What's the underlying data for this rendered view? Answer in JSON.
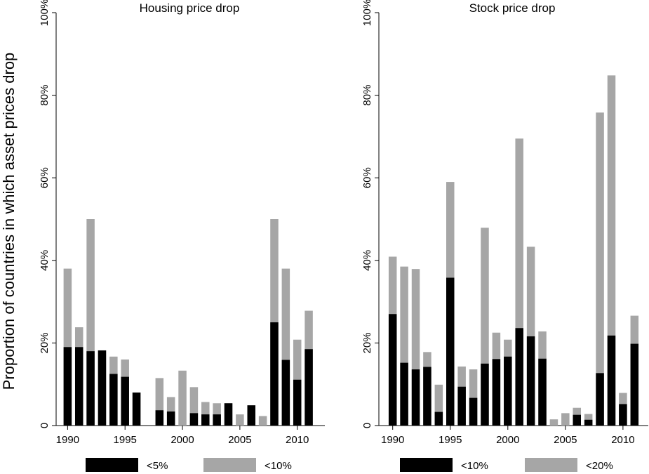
{
  "figure": {
    "ylabel": "Proportion of countries in which asset prices drop"
  },
  "colors": {
    "series1": "#000000",
    "series2": "#a6a6a6"
  },
  "chart_data": [
    {
      "type": "bar",
      "stacked": true,
      "title": "Housing price drop",
      "xlabel": "",
      "ylabel": "Proportion of countries in which asset prices drop",
      "x": [
        1990,
        1991,
        1992,
        1993,
        1994,
        1995,
        1996,
        1997,
        1998,
        1999,
        2000,
        2001,
        2002,
        2003,
        2004,
        2005,
        2006,
        2007,
        2008,
        2009,
        2010,
        2011
      ],
      "series": [
        {
          "name": "<5%",
          "color": "#000000",
          "values": [
            19.0,
            19.0,
            18.0,
            18.2,
            12.5,
            11.8,
            8.0,
            0,
            3.7,
            3.4,
            0,
            3.0,
            2.7,
            2.7,
            5.4,
            0,
            4.9,
            0,
            25.0,
            15.9,
            11.1,
            18.5
          ]
        },
        {
          "name": "<10%",
          "color": "#a6a6a6",
          "values": [
            38.0,
            23.8,
            50.0,
            18.2,
            16.7,
            16.0,
            8.0,
            0,
            11.5,
            6.9,
            13.3,
            9.3,
            5.7,
            5.4,
            5.4,
            2.7,
            4.9,
            2.3,
            50.0,
            38.0,
            20.8,
            27.8
          ]
        }
      ],
      "ylim": [
        0,
        100
      ],
      "yticks": [
        0,
        20,
        40,
        60,
        80,
        100
      ],
      "ytick_labels": [
        "0",
        "20%",
        "40%",
        "60%",
        "80%",
        "100%"
      ],
      "xticks": [
        1990,
        1995,
        2000,
        2005,
        2010
      ],
      "xtick_labels": [
        "1990",
        "1995",
        "2000",
        "2005",
        "2010"
      ],
      "legend": [
        "<5%",
        "<10%"
      ],
      "legend_position": "bottom"
    },
    {
      "type": "bar",
      "stacked": true,
      "title": "Stock price drop",
      "xlabel": "",
      "ylabel": "",
      "x": [
        1990,
        1991,
        1992,
        1993,
        1994,
        1995,
        1996,
        1997,
        1998,
        1999,
        2000,
        2001,
        2002,
        2003,
        2004,
        2005,
        2006,
        2007,
        2008,
        2009,
        2010,
        2011
      ],
      "series": [
        {
          "name": "<10%",
          "color": "#000000",
          "values": [
            27.0,
            15.2,
            13.6,
            14.2,
            3.3,
            35.8,
            9.4,
            6.7,
            15.0,
            16.1,
            16.7,
            23.6,
            21.6,
            16.2,
            0,
            0,
            2.6,
            1.4,
            12.7,
            21.8,
            5.2,
            19.8
          ]
        },
        {
          "name": "<20%",
          "color": "#a6a6a6",
          "values": [
            40.9,
            38.5,
            37.9,
            17.8,
            9.9,
            59.0,
            14.3,
            13.6,
            47.9,
            22.5,
            20.8,
            69.5,
            43.3,
            22.8,
            1.5,
            3.0,
            4.3,
            2.8,
            75.8,
            84.8,
            7.9,
            26.6
          ]
        }
      ],
      "ylim": [
        0,
        100
      ],
      "yticks": [
        0,
        20,
        40,
        60,
        80,
        100
      ],
      "ytick_labels": [
        "0",
        "20%",
        "40%",
        "60%",
        "80%",
        "100%"
      ],
      "xticks": [
        1990,
        1995,
        2000,
        2005,
        2010
      ],
      "xtick_labels": [
        "1990",
        "1995",
        "2000",
        "2005",
        "2010"
      ],
      "legend": [
        "<10%",
        "<20%"
      ],
      "legend_position": "bottom"
    }
  ]
}
